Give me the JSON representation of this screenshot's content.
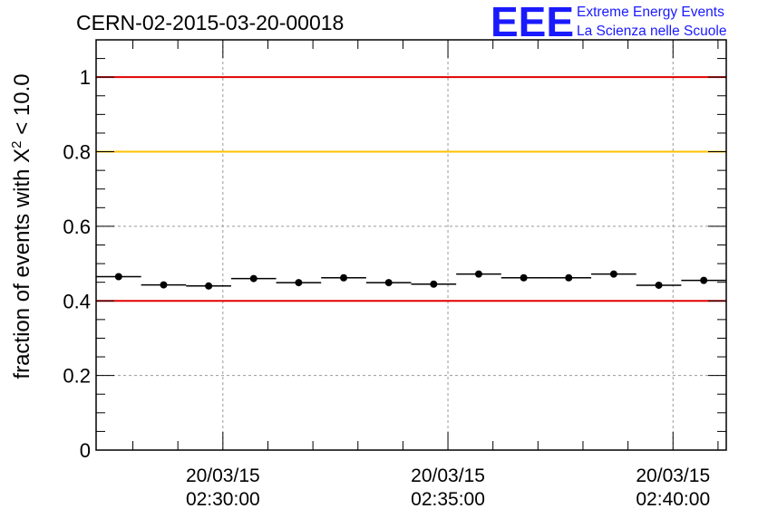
{
  "chart_data": {
    "type": "scatter",
    "title": "CERN-02-2015-03-20-00018",
    "ylabel": {
      "prefix": "fraction of events with ",
      "symbol": "X",
      "superscript": "2",
      "suffix": " < 10.0"
    },
    "xlabel": "",
    "ylim": [
      0,
      1.1
    ],
    "yticks": [
      {
        "value": 0,
        "label": "0"
      },
      {
        "value": 0.2,
        "label": "0.2"
      },
      {
        "value": 0.4,
        "label": "0.4"
      },
      {
        "value": 0.6,
        "label": "0.6"
      },
      {
        "value": 0.8,
        "label": "0.8"
      },
      {
        "value": 1,
        "label": "1"
      }
    ],
    "xlim": [
      "02:27:11",
      "02:41:11"
    ],
    "xticks": [
      {
        "value": "02:30:00",
        "date": "20/03/15",
        "time": "02:30:00"
      },
      {
        "value": "02:35:00",
        "date": "20/03/15",
        "time": "02:35:00"
      },
      {
        "value": "02:40:00",
        "date": "20/03/15",
        "time": "02:40:00"
      }
    ],
    "grid": true,
    "reference_lines": [
      {
        "y": 1.0,
        "color": "#e00000"
      },
      {
        "y": 0.8,
        "color": "#ffc000"
      },
      {
        "y": 0.4,
        "color": "#e00000"
      }
    ],
    "series": [
      {
        "marker_color": "#000000",
        "points": [
          {
            "x_start": "02:27:11",
            "x_end": "02:28:11",
            "y": 0.465
          },
          {
            "x_start": "02:28:11",
            "x_end": "02:29:11",
            "y": 0.443
          },
          {
            "x_start": "02:29:11",
            "x_end": "02:30:11",
            "y": 0.44
          },
          {
            "x_start": "02:30:11",
            "x_end": "02:31:11",
            "y": 0.46
          },
          {
            "x_start": "02:31:11",
            "x_end": "02:32:11",
            "y": 0.449
          },
          {
            "x_start": "02:32:11",
            "x_end": "02:33:11",
            "y": 0.462
          },
          {
            "x_start": "02:33:11",
            "x_end": "02:34:11",
            "y": 0.449
          },
          {
            "x_start": "02:34:11",
            "x_end": "02:35:11",
            "y": 0.445
          },
          {
            "x_start": "02:35:11",
            "x_end": "02:36:11",
            "y": 0.472
          },
          {
            "x_start": "02:36:11",
            "x_end": "02:37:11",
            "y": 0.462
          },
          {
            "x_start": "02:37:11",
            "x_end": "02:38:11",
            "y": 0.462
          },
          {
            "x_start": "02:38:11",
            "x_end": "02:39:11",
            "y": 0.472
          },
          {
            "x_start": "02:39:11",
            "x_end": "02:40:11",
            "y": 0.442
          },
          {
            "x_start": "02:40:11",
            "x_end": "02:41:11",
            "y": 0.455
          }
        ]
      }
    ]
  },
  "logo": {
    "mark": "EEE",
    "line1": "Extreme Energy Events",
    "line2": "La Scienza nelle Scuole",
    "color": "#1a1aff"
  }
}
